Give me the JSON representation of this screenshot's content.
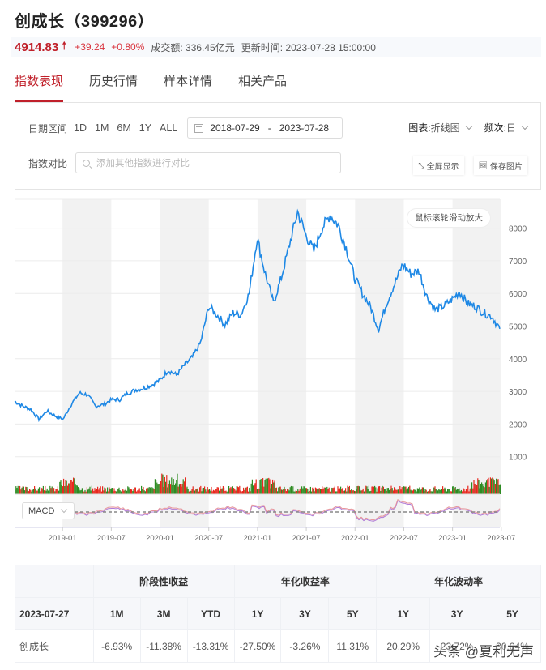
{
  "header": {
    "title": "创成长（399296）",
    "price": "4914.83",
    "direction_icon": "up-arrow-icon",
    "change": "+39.24",
    "change_pct": "+0.80%",
    "turnover_label": "成交额:",
    "turnover": "336.45亿元",
    "update_label": "更新时间:",
    "update_time": "2023-07-28 15:00:00"
  },
  "colors": {
    "accent": "#c0202a",
    "line": "#1e88e5",
    "volume_up": "#e8281e",
    "volume_down": "#2e8b22",
    "band": "#f2f2f2"
  },
  "tabs": [
    {
      "label": "指数表现",
      "active": true
    },
    {
      "label": "历史行情",
      "active": false
    },
    {
      "label": "样本详情",
      "active": false
    },
    {
      "label": "相关产品",
      "active": false
    }
  ],
  "controls": {
    "date_range_label": "日期区间",
    "range_buttons": [
      "1D",
      "1M",
      "6M",
      "1Y",
      "ALL"
    ],
    "start_date": "2018-07-29",
    "date_separator": "-",
    "end_date": "2023-07-28",
    "compare_label": "指数对比",
    "compare_placeholder": "添加其他指数进行对比",
    "chart_type_label": "图表:",
    "chart_type_value": "折线图",
    "frequency_label": "频次:",
    "frequency_value": "日",
    "fullscreen_label": "全屏显示",
    "save_image_label": "保存图片"
  },
  "chart_hint": "鼠标滚轮滑动放大",
  "indicator_select": "MACD",
  "chart_data": {
    "type": "line",
    "title": "创成长（399296）",
    "xlabel": "",
    "ylabel": "",
    "ylim": [
      0,
      9000
    ],
    "y_ticks": [
      1000,
      2000,
      3000,
      4000,
      5000,
      6000,
      7000,
      8000
    ],
    "x_ticks": [
      "2019-01",
      "2019-07",
      "2020-01",
      "2020-07",
      "2021-01",
      "2021-07",
      "2022-01",
      "2022-07",
      "2023-01",
      "2023-07"
    ],
    "grid": true,
    "series": [
      {
        "name": "创成长",
        "x": [
          "2018-07",
          "2018-08",
          "2018-09",
          "2018-10",
          "2018-11",
          "2018-12",
          "2019-01",
          "2019-02",
          "2019-03",
          "2019-04",
          "2019-05",
          "2019-06",
          "2019-07",
          "2019-08",
          "2019-09",
          "2019-10",
          "2019-11",
          "2019-12",
          "2020-01",
          "2020-02",
          "2020-03",
          "2020-04",
          "2020-05",
          "2020-06",
          "2020-07",
          "2020-08",
          "2020-09",
          "2020-10",
          "2020-11",
          "2020-12",
          "2021-01",
          "2021-02",
          "2021-03",
          "2021-04",
          "2021-05",
          "2021-06",
          "2021-07",
          "2021-08",
          "2021-09",
          "2021-10",
          "2021-11",
          "2021-12",
          "2022-01",
          "2022-02",
          "2022-03",
          "2022-04",
          "2022-05",
          "2022-06",
          "2022-07",
          "2022-08",
          "2022-09",
          "2022-10",
          "2022-11",
          "2022-12",
          "2023-01",
          "2023-02",
          "2023-03",
          "2023-04",
          "2023-05",
          "2023-06",
          "2023-07"
        ],
        "values": [
          2700,
          2550,
          2450,
          2150,
          2400,
          2250,
          2150,
          2600,
          2950,
          2900,
          2550,
          2600,
          2750,
          2750,
          2950,
          3050,
          3100,
          3200,
          3350,
          3650,
          3500,
          3800,
          4050,
          4500,
          5600,
          5350,
          5050,
          5400,
          5350,
          6000,
          7700,
          6600,
          5700,
          6500,
          7500,
          8500,
          7800,
          7300,
          8000,
          8400,
          8100,
          7400,
          6500,
          6000,
          5600,
          4900,
          5700,
          6300,
          6900,
          6600,
          6700,
          5900,
          5500,
          5600,
          5800,
          6050,
          5700,
          5600,
          5400,
          5300,
          4915
        ]
      }
    ],
    "volume_panel": true,
    "macd_panel": true
  },
  "performance_table": {
    "groups": [
      "阶段性收益",
      "年化收益率",
      "年化波动率"
    ],
    "date": "2023-07-27",
    "columns": [
      "1M",
      "3M",
      "YTD",
      "1Y",
      "3Y",
      "5Y",
      "1Y",
      "3Y",
      "5Y"
    ],
    "rows": [
      {
        "name": "创成长",
        "values": [
          "-6.93%",
          "-11.38%",
          "-13.31%",
          "-27.50%",
          "-3.26%",
          "11.31%",
          "20.29%",
          "23.72%",
          "30.04%"
        ]
      }
    ]
  },
  "watermark": "头条 @夏利无声"
}
